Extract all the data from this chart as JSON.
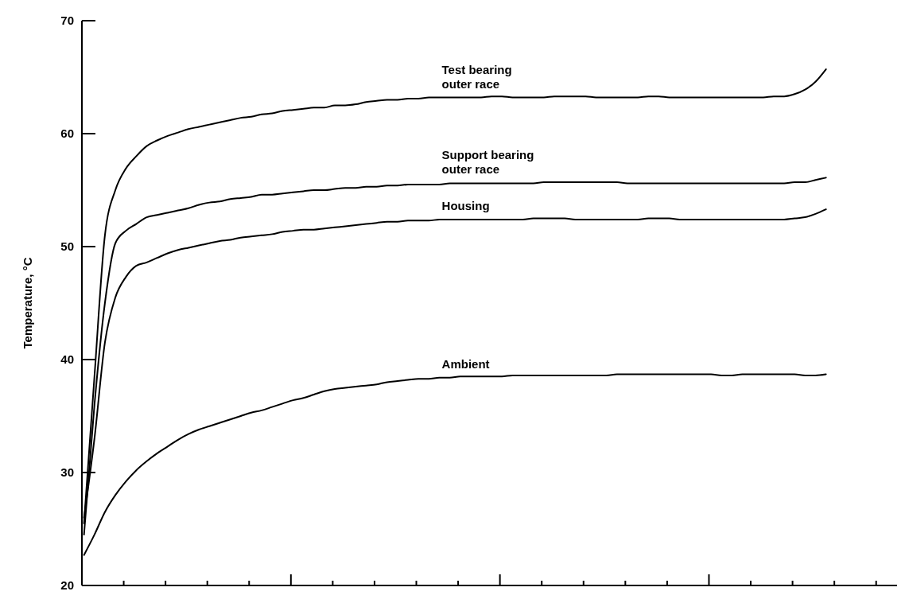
{
  "chart_data": {
    "type": "line",
    "ylabel": "Temperature, °C",
    "ylim": [
      20,
      70
    ],
    "yticks": [
      20,
      30,
      40,
      50,
      60,
      70
    ],
    "grid": false,
    "marker": "none",
    "line_style": "solid",
    "categories": [
      null,
      null,
      null,
      null,
      null,
      null,
      null,
      null,
      null,
      null,
      null,
      null,
      null,
      null,
      null,
      null,
      null,
      null,
      null,
      null,
      null,
      null,
      null,
      null,
      null,
      null,
      null,
      null,
      null,
      null,
      null,
      null,
      null,
      null,
      null,
      null,
      null,
      null,
      null,
      null,
      null,
      null,
      null,
      null,
      null,
      null,
      null,
      null,
      null,
      null,
      null,
      null,
      null,
      null,
      null,
      null,
      null,
      null,
      null,
      null,
      null,
      null,
      null,
      null,
      null,
      null,
      null,
      null,
      null,
      null,
      null,
      null
    ],
    "series": [
      {
        "name": "Test bearing outer race",
        "color": "#000000",
        "values": [
          25.5,
          38.5,
          51,
          55,
          56.9,
          58,
          58.9,
          59.4,
          59.8,
          60.1,
          60.4,
          60.6,
          60.8,
          61,
          61.2,
          61.4,
          61.5,
          61.7,
          61.8,
          62,
          62.1,
          62.2,
          62.3,
          62.3,
          62.5,
          62.5,
          62.6,
          62.8,
          62.9,
          63,
          63,
          63.1,
          63.1,
          63.2,
          63.2,
          63.2,
          63.2,
          63.2,
          63.2,
          63.3,
          63.3,
          63.2,
          63.2,
          63.2,
          63.2,
          63.3,
          63.3,
          63.3,
          63.3,
          63.2,
          63.2,
          63.2,
          63.2,
          63.2,
          63.3,
          63.3,
          63.2,
          63.2,
          63.2,
          63.2,
          63.2,
          63.2,
          63.2,
          63.2,
          63.2,
          63.2,
          63.3,
          63.3,
          63.5,
          63.9,
          64.6,
          65.7
        ]
      },
      {
        "name": "Support bearing outer race",
        "color": "#000000",
        "values": [
          24.5,
          36,
          45,
          50.3,
          51.4,
          52,
          52.6,
          52.8,
          53,
          53.2,
          53.4,
          53.7,
          53.9,
          54,
          54.2,
          54.3,
          54.4,
          54.6,
          54.6,
          54.7,
          54.8,
          54.9,
          55,
          55,
          55.1,
          55.2,
          55.2,
          55.3,
          55.3,
          55.4,
          55.4,
          55.5,
          55.5,
          55.5,
          55.5,
          55.6,
          55.6,
          55.6,
          55.6,
          55.6,
          55.6,
          55.6,
          55.6,
          55.6,
          55.7,
          55.7,
          55.7,
          55.7,
          55.7,
          55.7,
          55.7,
          55.7,
          55.6,
          55.6,
          55.6,
          55.6,
          55.6,
          55.6,
          55.6,
          55.6,
          55.6,
          55.6,
          55.6,
          55.6,
          55.6,
          55.6,
          55.6,
          55.6,
          55.7,
          55.7,
          55.9,
          56.1
        ]
      },
      {
        "name": "Housing",
        "color": "#000000",
        "values": [
          26,
          33,
          41.5,
          45.5,
          47.3,
          48.3,
          48.6,
          49,
          49.4,
          49.7,
          49.9,
          50.1,
          50.3,
          50.5,
          50.6,
          50.8,
          50.9,
          51,
          51.1,
          51.3,
          51.4,
          51.5,
          51.5,
          51.6,
          51.7,
          51.8,
          51.9,
          52,
          52.1,
          52.2,
          52.2,
          52.3,
          52.3,
          52.3,
          52.4,
          52.4,
          52.4,
          52.4,
          52.4,
          52.4,
          52.4,
          52.4,
          52.4,
          52.5,
          52.5,
          52.5,
          52.5,
          52.4,
          52.4,
          52.4,
          52.4,
          52.4,
          52.4,
          52.4,
          52.5,
          52.5,
          52.5,
          52.4,
          52.4,
          52.4,
          52.4,
          52.4,
          52.4,
          52.4,
          52.4,
          52.4,
          52.4,
          52.4,
          52.5,
          52.6,
          52.9,
          53.3
        ]
      },
      {
        "name": "Ambient",
        "color": "#000000",
        "values": [
          22.7,
          24.5,
          26.5,
          28,
          29.2,
          30.2,
          31,
          31.7,
          32.3,
          32.9,
          33.4,
          33.8,
          34.1,
          34.4,
          34.7,
          35,
          35.3,
          35.5,
          35.8,
          36.1,
          36.4,
          36.6,
          36.9,
          37.2,
          37.4,
          37.5,
          37.6,
          37.7,
          37.8,
          38,
          38.1,
          38.2,
          38.3,
          38.3,
          38.4,
          38.4,
          38.5,
          38.5,
          38.5,
          38.5,
          38.5,
          38.6,
          38.6,
          38.6,
          38.6,
          38.6,
          38.6,
          38.6,
          38.6,
          38.6,
          38.6,
          38.7,
          38.7,
          38.7,
          38.7,
          38.7,
          38.7,
          38.7,
          38.7,
          38.7,
          38.7,
          38.6,
          38.6,
          38.7,
          38.7,
          38.7,
          38.7,
          38.7,
          38.7,
          38.6,
          38.6,
          38.7
        ]
      }
    ]
  }
}
